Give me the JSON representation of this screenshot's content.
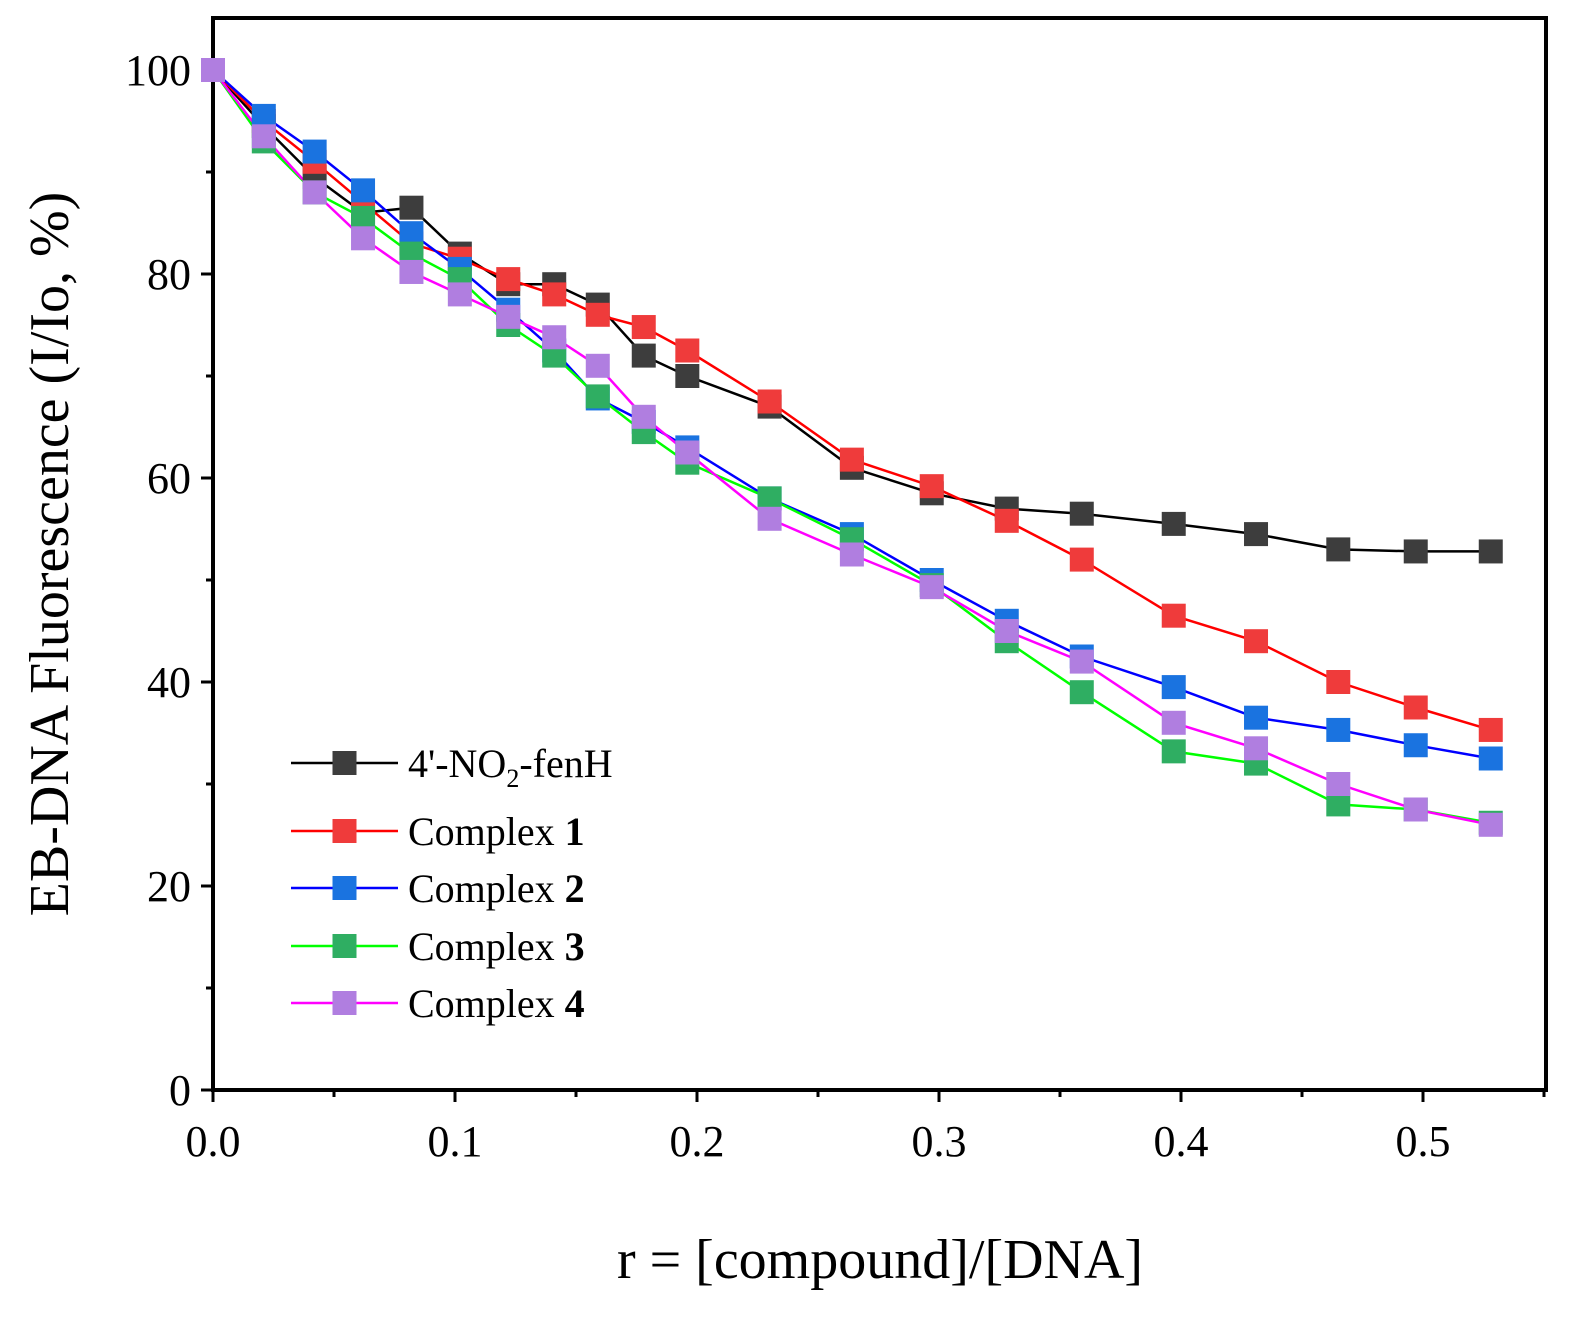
{
  "chart_data": {
    "type": "line",
    "title": "",
    "xlabel": "r = [compound]/[DNA]",
    "ylabel": "EB-DNA Fluorescence (I/Io, %)",
    "xlim": [
      0,
      0.55
    ],
    "ylim": [
      0,
      105
    ],
    "xticks": [
      0.0,
      0.1,
      0.2,
      0.3,
      0.4,
      0.5
    ],
    "xtick_labels": [
      "0.0",
      "0.1",
      "0.2",
      "0.3",
      "0.4",
      "0.5"
    ],
    "yticks": [
      0,
      20,
      40,
      60,
      80,
      100
    ],
    "ytick_labels": [
      "0",
      "20",
      "40",
      "60",
      "80",
      "100"
    ],
    "grid": false,
    "legend_position": "lower-left",
    "series": [
      {
        "name": "4'-NO₂-fenH",
        "legend_prefix": "4'-NO",
        "legend_sub": "2",
        "legend_suffix": "-fenH",
        "legend_bold": "",
        "line_color": "#000000",
        "marker_color": "#3d3d3d",
        "x": [
          0.0,
          0.021,
          0.042,
          0.062,
          0.082,
          0.102,
          0.122,
          0.141,
          0.159,
          0.178,
          0.196,
          0.23,
          0.264,
          0.297,
          0.328,
          0.359,
          0.397,
          0.431,
          0.465,
          0.497,
          0.528
        ],
        "values": [
          100,
          94.5,
          89.5,
          86,
          86.5,
          82,
          79,
          79,
          77,
          72,
          70,
          67,
          61,
          58.5,
          57,
          56.5,
          55.5,
          54.5,
          53,
          52.8,
          52.8
        ]
      },
      {
        "name": "Complex 1",
        "legend_prefix": "Complex ",
        "legend_sub": "",
        "legend_suffix": "",
        "legend_bold": "1",
        "line_color": "#ff0000",
        "marker_color": "#ef3b3b",
        "x": [
          0.0,
          0.021,
          0.042,
          0.062,
          0.082,
          0.102,
          0.122,
          0.141,
          0.159,
          0.178,
          0.196,
          0.23,
          0.264,
          0.297,
          0.328,
          0.359,
          0.397,
          0.431,
          0.465,
          0.497,
          0.528
        ],
        "values": [
          100,
          95,
          91,
          87,
          83,
          81.5,
          79.5,
          78,
          76,
          74.8,
          72.5,
          67.5,
          61.8,
          59.2,
          55.8,
          52,
          46.5,
          44,
          40,
          37.5,
          35.3
        ]
      },
      {
        "name": "Complex 2",
        "legend_prefix": "Complex ",
        "legend_sub": "",
        "legend_suffix": "",
        "legend_bold": "2",
        "line_color": "#0000ff",
        "marker_color": "#1a73e0",
        "x": [
          0.0,
          0.021,
          0.042,
          0.062,
          0.082,
          0.102,
          0.122,
          0.141,
          0.159,
          0.178,
          0.196,
          0.23,
          0.264,
          0.297,
          0.328,
          0.359,
          0.397,
          0.431,
          0.465,
          0.497,
          0.528
        ],
        "values": [
          100,
          95.5,
          92,
          88.2,
          84,
          80.5,
          76.5,
          72.5,
          67.8,
          65.5,
          63,
          58,
          54.5,
          50,
          46,
          42.5,
          39.5,
          36.5,
          35.3,
          33.8,
          32.5
        ]
      },
      {
        "name": "Complex 3",
        "legend_prefix": "Complex ",
        "legend_sub": "",
        "legend_suffix": "",
        "legend_bold": "3",
        "line_color": "#00ff00",
        "marker_color": "#2fae62",
        "x": [
          0.0,
          0.021,
          0.042,
          0.062,
          0.082,
          0.102,
          0.122,
          0.141,
          0.159,
          0.178,
          0.196,
          0.23,
          0.264,
          0.297,
          0.328,
          0.359,
          0.397,
          0.431,
          0.465,
          0.497,
          0.528
        ],
        "values": [
          100,
          93,
          88,
          85.5,
          82,
          79.5,
          75,
          72,
          68,
          64.5,
          61.5,
          58,
          54,
          49.5,
          44,
          39,
          33.2,
          32,
          28,
          27.5,
          26.2
        ]
      },
      {
        "name": "Complex 4",
        "legend_prefix": "Complex ",
        "legend_sub": "",
        "legend_suffix": "",
        "legend_bold": "4",
        "line_color": "#ff00ff",
        "marker_color": "#b07ee0",
        "x": [
          0.0,
          0.021,
          0.042,
          0.062,
          0.082,
          0.102,
          0.122,
          0.141,
          0.159,
          0.178,
          0.196,
          0.23,
          0.264,
          0.297,
          0.328,
          0.359,
          0.397,
          0.431,
          0.465,
          0.497,
          0.528
        ],
        "values": [
          100,
          93.5,
          88,
          83.5,
          80.2,
          78,
          75.8,
          73.8,
          71,
          66,
          62.5,
          56,
          52.5,
          49.3,
          45,
          42,
          36,
          33.5,
          30,
          27.5,
          26
        ]
      }
    ]
  }
}
